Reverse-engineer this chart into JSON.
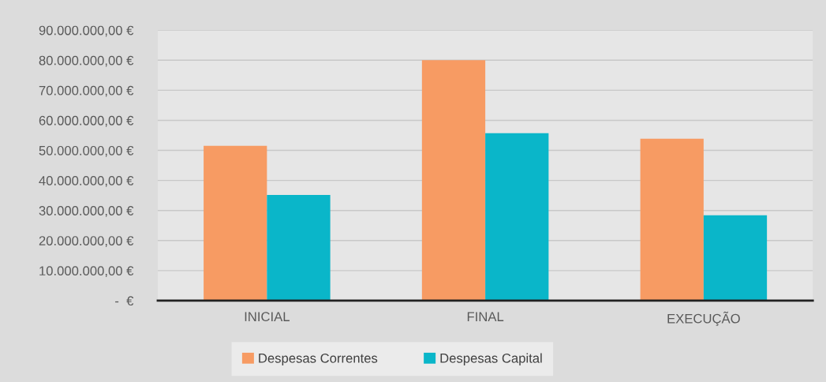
{
  "chart_data": {
    "type": "bar",
    "categories": [
      "INICIAL",
      "FINAL",
      "EXECUÇÃO"
    ],
    "series": [
      {
        "name": "Despesas Correntes",
        "color": "#f79b63",
        "values": [
          51500000,
          80000000,
          53900000
        ]
      },
      {
        "name": "Despesas Capital",
        "color": "#0ab6c9",
        "values": [
          35200000,
          55700000,
          28400000
        ]
      }
    ],
    "ylim": [
      0,
      90000000
    ],
    "yticks": [
      {
        "value": 0,
        "label": "-  €"
      },
      {
        "value": 10000000,
        "label": "10.000.000,00 €"
      },
      {
        "value": 20000000,
        "label": "20.000.000,00 €"
      },
      {
        "value": 30000000,
        "label": "30.000.000,00 €"
      },
      {
        "value": 40000000,
        "label": "40.000.000,00 €"
      },
      {
        "value": 50000000,
        "label": "50.000.000,00 €"
      },
      {
        "value": 60000000,
        "label": "60.000.000,00 €"
      },
      {
        "value": 70000000,
        "label": "70.000.000,00 €"
      },
      {
        "value": 80000000,
        "label": "80.000.000,00 €"
      },
      {
        "value": 90000000,
        "label": "90.000.000,00 €"
      }
    ],
    "grid": "y",
    "legend": "bottom"
  }
}
